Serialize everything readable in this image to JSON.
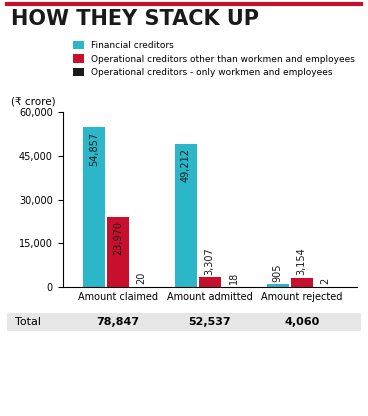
{
  "chart_data": {
    "type": "bar",
    "title": "HOW THEY STACK UP",
    "subtitle": "(₹ crore)",
    "categories": [
      "Amount claimed",
      "Amount admitted",
      "Amount rejected"
    ],
    "series": [
      {
        "name": "Financial creditors",
        "color": "#2bb6c9",
        "values": [
          54857,
          49212,
          905
        ],
        "value_labels": [
          "54,857",
          "49,212",
          "905"
        ]
      },
      {
        "name": "Operational creditors other than workmen and employees",
        "color": "#c8102e",
        "values": [
          23970,
          3307,
          3154
        ],
        "value_labels": [
          "23,970",
          "3,307",
          "3,154"
        ]
      },
      {
        "name": "Operational creditors - only workmen and employees",
        "color": "#1a1a1a",
        "values": [
          20,
          18,
          2
        ],
        "value_labels": [
          "20",
          "18",
          "2"
        ]
      }
    ],
    "totals": {
      "label": "Total",
      "values": [
        78847,
        52537,
        4060
      ],
      "value_labels": [
        "78,847",
        "52,537",
        "4,060"
      ]
    },
    "ylim": [
      0,
      60000
    ],
    "yticks": [
      0,
      {
        "value": 15000,
        "label": "15,000"
      },
      {
        "value": 30000,
        "label": "30,000"
      },
      {
        "value": 45000,
        "label": "45,000"
      },
      {
        "value": 60000,
        "label": "60,000"
      }
    ],
    "grid": false,
    "legend": "upper right",
    "data_labels": true
  }
}
